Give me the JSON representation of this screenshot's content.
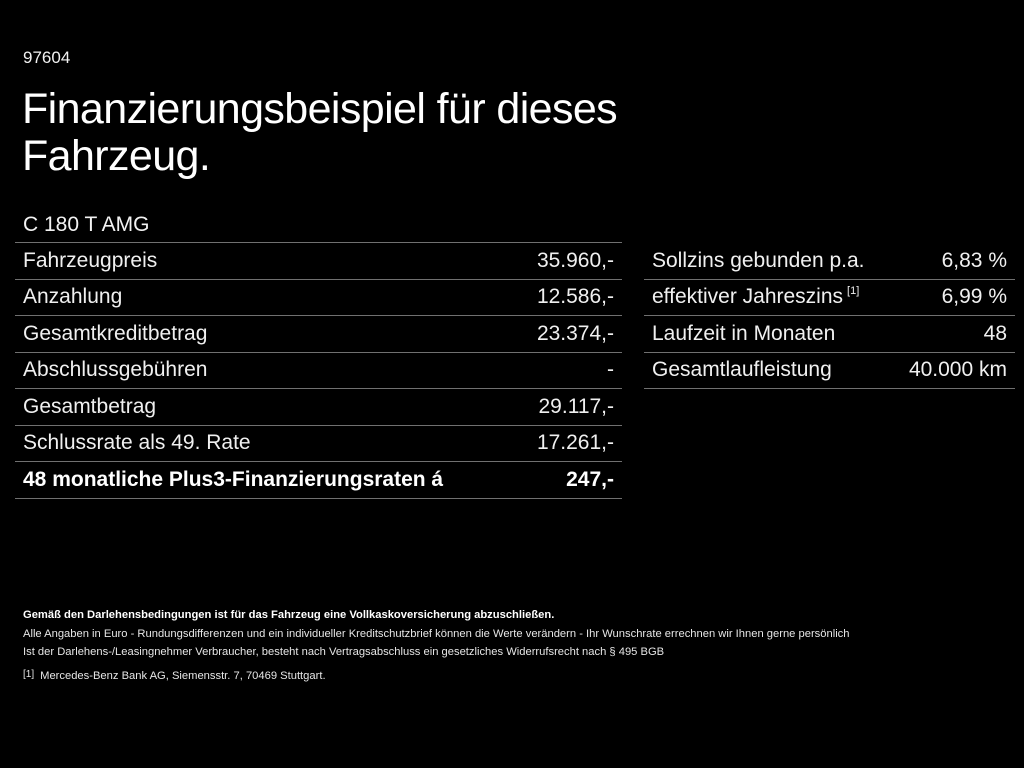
{
  "header": {
    "code": "97604",
    "title": "Finanzierungsbeispiel für dieses Fahrzeug."
  },
  "vehicle": {
    "model": "C 180 T AMG"
  },
  "financing_table": {
    "rows": [
      {
        "label": "Fahrzeugpreis",
        "value": "35.960,-"
      },
      {
        "label": "Anzahlung",
        "value": "12.586,-"
      },
      {
        "label": "Gesamtkreditbetrag",
        "value": "23.374,-"
      },
      {
        "label": "Abschlussgebühren",
        "value": "-"
      },
      {
        "label": "Gesamtbetrag",
        "value": "29.117,-"
      },
      {
        "label": "Schlussrate als 49. Rate",
        "value": "17.261,-"
      },
      {
        "label": "48 monatliche Plus3-Finanzierungsraten á",
        "value": "247,-",
        "bold": true
      }
    ]
  },
  "terms_table": {
    "rows": [
      {
        "label": "Sollzins gebunden p.a.",
        "value": "6,83 %"
      },
      {
        "label": "effektiver Jahreszins",
        "footnote": "[1]",
        "value": "6,99 %"
      },
      {
        "label": "Laufzeit in Monaten",
        "value": "48"
      },
      {
        "label": "Gesamtlaufleistung",
        "value": "40.000 km"
      }
    ]
  },
  "footer": {
    "insurance_note": "Gemäß den Darlehensbedingungen ist für das Fahrzeug eine Vollkaskoversicherung abzuschließen.",
    "disclaimer": "Alle Angaben in Euro - Rundungsdifferenzen und ein individueller Kreditschutzbrief können die Werte verändern - Ihr Wunschrate errechnen wir Ihnen gerne persönlich",
    "withdrawal_note": "Ist der Darlehens-/Leasingnehmer Verbraucher, besteht nach Vertragsabschluss ein gesetzliches Widerrufsrecht nach § 495 BGB",
    "footnote_mark": "[1]",
    "footnote_text": "Mercedes-Benz Bank AG, Siemensstr. 7, 70469 Stuttgart."
  },
  "colors": {
    "background": "#000000",
    "text": "#ffffff",
    "rule": "#707070"
  }
}
